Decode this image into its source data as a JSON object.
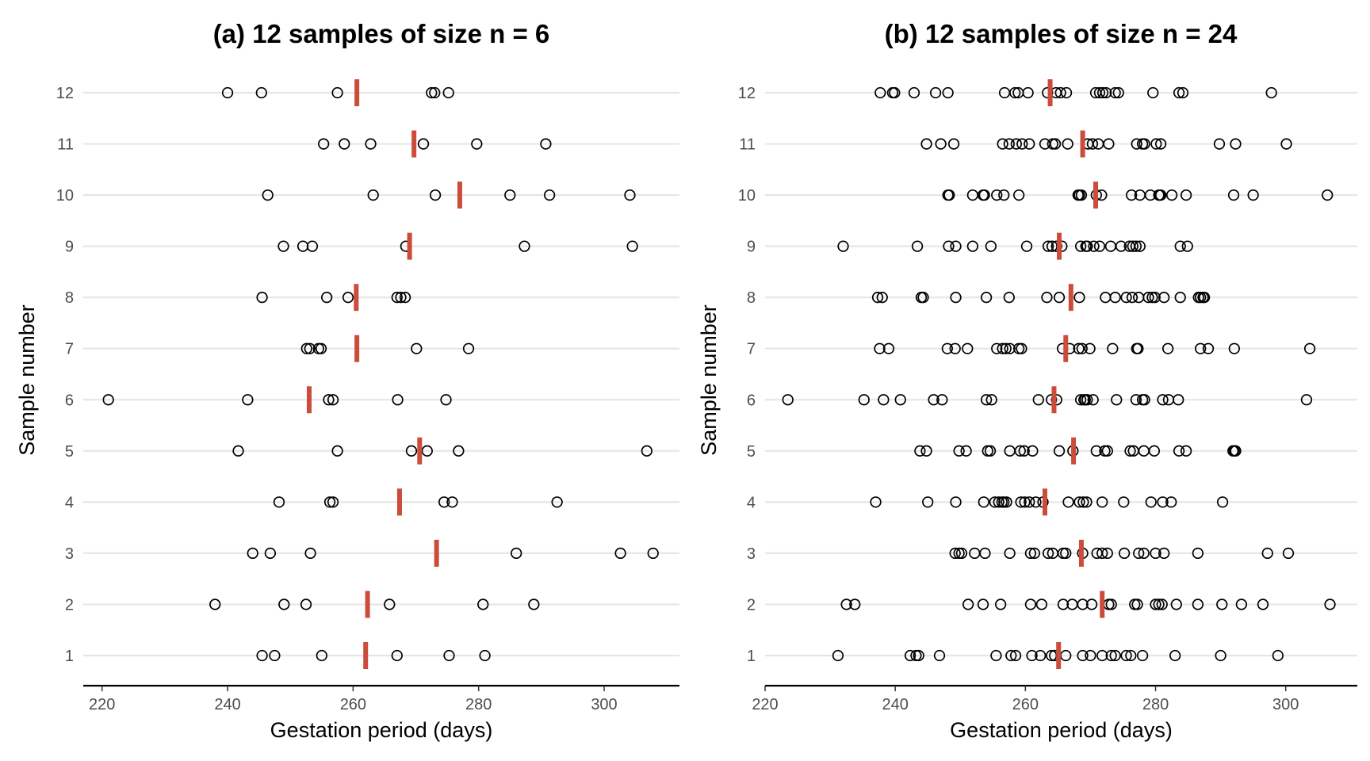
{
  "chart_data": [
    {
      "type": "scatter",
      "title": "(a) 12 samples of size n = 6",
      "xlabel": "Gestation period (days)",
      "ylabel": "Sample number",
      "xlim": [
        217,
        312
      ],
      "xticks": [
        220,
        240,
        260,
        280,
        300
      ],
      "y_categories": [
        "1",
        "2",
        "3",
        "4",
        "5",
        "6",
        "7",
        "8",
        "9",
        "10",
        "11",
        "12"
      ],
      "grid": "horizontal",
      "point_style": "open circle, black",
      "mean_marker_color": "#cb4c3a",
      "samples": [
        {
          "sample": "1",
          "values": [
            245.5,
            247.5,
            255,
            267,
            275.3,
            281
          ],
          "mean": 262
        },
        {
          "sample": "2",
          "values": [
            238,
            249,
            252.5,
            265.8,
            280.7,
            288.8
          ],
          "mean": 262.3
        },
        {
          "sample": "3",
          "values": [
            244,
            246.8,
            253.2,
            286,
            302.6,
            307.8
          ],
          "mean": 273.3
        },
        {
          "sample": "4",
          "values": [
            248.2,
            256.3,
            256.8,
            274.5,
            275.8,
            292.5
          ],
          "mean": 267.4
        },
        {
          "sample": "5",
          "values": [
            241.7,
            257.5,
            269.3,
            271.8,
            276.8,
            306.8
          ],
          "mean": 270.6
        },
        {
          "sample": "6",
          "values": [
            221,
            243.2,
            256.1,
            256.8,
            267.1,
            274.8
          ],
          "mean": 253
        },
        {
          "sample": "7",
          "values": [
            252.6,
            253.1,
            254.5,
            254.9,
            270.1,
            278.4
          ],
          "mean": 260.6
        },
        {
          "sample": "8",
          "values": [
            245.5,
            255.8,
            259.2,
            267,
            267.6,
            268.3
          ],
          "mean": 260.5
        },
        {
          "sample": "9",
          "values": [
            248.9,
            252,
            253.5,
            268.4,
            287.3,
            304.5
          ],
          "mean": 269
        },
        {
          "sample": "10",
          "values": [
            246.4,
            263.2,
            273.1,
            285,
            291.3,
            304.1
          ],
          "mean": 277
        },
        {
          "sample": "11",
          "values": [
            255.3,
            258.6,
            262.8,
            271.2,
            279.7,
            290.7
          ],
          "mean": 269.7
        },
        {
          "sample": "12",
          "values": [
            240,
            245.4,
            257.5,
            272.5,
            273,
            275.2
          ],
          "mean": 260.6
        }
      ]
    },
    {
      "type": "scatter",
      "title": "(b) 12 samples of size n = 24",
      "xlabel": "Gestation period (days)",
      "ylabel": "Sample number",
      "xlim": [
        220,
        311
      ],
      "xticks": [
        220,
        240,
        260,
        280,
        300
      ],
      "y_categories": [
        "1",
        "2",
        "3",
        "4",
        "5",
        "6",
        "7",
        "8",
        "9",
        "10",
        "11",
        "12"
      ],
      "grid": "horizontal",
      "point_style": "open circle, black",
      "mean_marker_color": "#cb4c3a",
      "samples": [
        {
          "sample": "1",
          "values": [
            231.2,
            242.3,
            243.2,
            243.6,
            246.8,
            255.5,
            257.8,
            258.5,
            261,
            262.3,
            264,
            264.5,
            266.2,
            268.8,
            270,
            271.8,
            273.2,
            273.8,
            275.5,
            276.2,
            278,
            283,
            290,
            298.8
          ],
          "mean": 265.1
        },
        {
          "sample": "2",
          "values": [
            232.5,
            233.8,
            251.2,
            253.5,
            256.2,
            260.8,
            262.5,
            265.8,
            267.2,
            268.8,
            270.2,
            272.8,
            273.2,
            276.8,
            277.2,
            280,
            280.5,
            283.2,
            286.5,
            290.2,
            293.2,
            296.5,
            306.8,
            281
          ],
          "mean": 271.8
        },
        {
          "sample": "3",
          "values": [
            249.2,
            249.8,
            250.2,
            252.2,
            253.8,
            257.6,
            260.8,
            261.4,
            263.5,
            264.2,
            265.8,
            266.2,
            268.8,
            271,
            271.8,
            272.6,
            275.2,
            277.4,
            278.2,
            280,
            286.5,
            297.2,
            300.4,
            281.3
          ],
          "mean": 268.6
        },
        {
          "sample": "4",
          "values": [
            237,
            245,
            249.3,
            253.6,
            255.3,
            255.9,
            256.4,
            257.1,
            259.3,
            259.9,
            260.6,
            261.6,
            262.7,
            266.6,
            268.3,
            268.9,
            269.4,
            271.8,
            275.1,
            279.3,
            281.1,
            282.4,
            290.3,
            256.7
          ],
          "mean": 263
        },
        {
          "sample": "5",
          "values": [
            243.8,
            244.8,
            249.8,
            250.9,
            254.2,
            254.6,
            257.6,
            259.2,
            259.8,
            261.1,
            265.2,
            267.3,
            270.9,
            272.2,
            272.6,
            276.1,
            276.6,
            278.2,
            279.8,
            283.6,
            284.7,
            291.9,
            292.1,
            292.3
          ],
          "mean": 267.4
        },
        {
          "sample": "6",
          "values": [
            223.5,
            235.2,
            238.2,
            240.8,
            245.9,
            247.2,
            254,
            254.8,
            262,
            264,
            264.8,
            268.5,
            269,
            269.5,
            270.4,
            274,
            277,
            278,
            281.1,
            282,
            283.5,
            303.2,
            278.3,
            269.2
          ],
          "mean": 264.4
        },
        {
          "sample": "7",
          "values": [
            237.6,
            239,
            248,
            249.2,
            251.1,
            255.6,
            256.5,
            257,
            257.6,
            259,
            259.4,
            265.7,
            266.8,
            268.2,
            268.7,
            269.9,
            273.4,
            277.1,
            277.3,
            281.9,
            286.9,
            288.1,
            292.1,
            303.7
          ],
          "mean": 266.2
        },
        {
          "sample": "8",
          "values": [
            237.3,
            238,
            244,
            244.3,
            249.3,
            254,
            257.5,
            263.3,
            265.2,
            268.3,
            272.3,
            273.8,
            275.5,
            276.4,
            277.4,
            278.9,
            279.5,
            281.3,
            283.8,
            286.6,
            286.9,
            287.3,
            287.5,
            279.9
          ],
          "mean": 267
        },
        {
          "sample": "9",
          "values": [
            232,
            243.4,
            248.2,
            249.3,
            251.9,
            254.7,
            260.2,
            263.5,
            264.1,
            264.8,
            265.6,
            268.5,
            269.5,
            270.5,
            271.4,
            273.1,
            274.7,
            276,
            277,
            277.6,
            283.8,
            284.9,
            269.3,
            276.5
          ],
          "mean": 265.2
        },
        {
          "sample": "10",
          "values": [
            248.1,
            248.3,
            251.9,
            253.5,
            255.6,
            256.7,
            259,
            268.1,
            268.6,
            270.9,
            271.7,
            276.3,
            277.6,
            279.2,
            280.5,
            280.8,
            282.5,
            284.7,
            292,
            295,
            306.4,
            253.7,
            280.6,
            268.3
          ],
          "mean": 270.8
        },
        {
          "sample": "11",
          "values": [
            244.8,
            247,
            249,
            256.5,
            257.5,
            258.6,
            259.5,
            260.6,
            263,
            264.2,
            264.6,
            266.5,
            269.6,
            270.3,
            271.2,
            272.8,
            277.1,
            278,
            278.3,
            280.1,
            280.8,
            289.8,
            292.3,
            300.1
          ],
          "mean": 268.8
        },
        {
          "sample": "12",
          "values": [
            237.7,
            239.6,
            239.9,
            242.9,
            246.2,
            248.1,
            256.8,
            258.4,
            258.9,
            260.4,
            263.4,
            264.7,
            266.3,
            270.8,
            271.4,
            271.9,
            272.4,
            273.8,
            274.3,
            279.6,
            283.6,
            284.2,
            297.8,
            265.4
          ],
          "mean": 263.8
        }
      ]
    }
  ]
}
